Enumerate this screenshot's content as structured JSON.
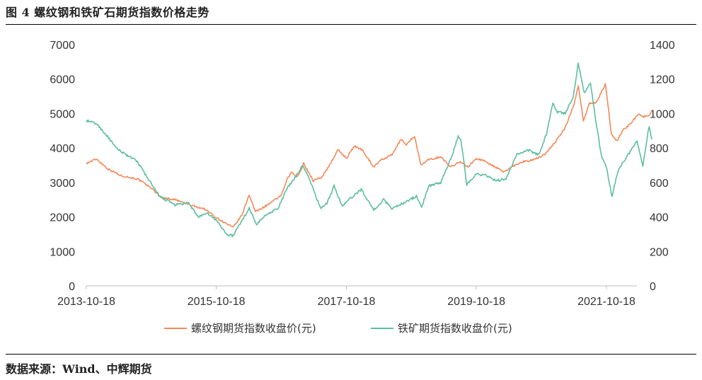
{
  "header": {
    "title": "图 4 螺纹钢和铁矿石期货指数价格走势"
  },
  "footer": {
    "source": "数据来源：Wind、中辉期货"
  },
  "chart_data": {
    "type": "line",
    "title": "",
    "x_ticks": [
      "2013-10-18",
      "2015-10-18",
      "2017-10-18",
      "2019-10-18",
      "2021-10-18"
    ],
    "x_range": [
      "2013-10-18",
      "2022-06-30"
    ],
    "y_left": {
      "range": [
        0,
        7000
      ],
      "ticks": [
        "0",
        "1000",
        "2000",
        "3000",
        "4000",
        "5000",
        "6000",
        "7000"
      ]
    },
    "y_right": {
      "range": [
        0,
        1400
      ],
      "ticks": [
        "0",
        "200",
        "400",
        "600",
        "800",
        "1000",
        "1200",
        "1400"
      ]
    },
    "grid": false,
    "legend_position": "bottom",
    "series": [
      {
        "name": "螺纹钢期货指数收盘价(元)",
        "axis": "left",
        "color": "#f4885a",
        "points": [
          [
            "2013-10-18",
            3560
          ],
          [
            "2013-12-15",
            3680
          ],
          [
            "2014-02-15",
            3400
          ],
          [
            "2014-05-01",
            3200
          ],
          [
            "2014-08-01",
            3100
          ],
          [
            "2014-10-15",
            2850
          ],
          [
            "2014-12-15",
            2560
          ],
          [
            "2015-03-01",
            2500
          ],
          [
            "2015-06-01",
            2330
          ],
          [
            "2015-08-15",
            2230
          ],
          [
            "2015-10-18",
            1980
          ],
          [
            "2015-12-15",
            1800
          ],
          [
            "2016-01-20",
            1690
          ],
          [
            "2016-03-10",
            2050
          ],
          [
            "2016-04-20",
            2650
          ],
          [
            "2016-05-25",
            2150
          ],
          [
            "2016-07-15",
            2300
          ],
          [
            "2016-09-01",
            2450
          ],
          [
            "2016-10-20",
            2650
          ],
          [
            "2016-11-20",
            3100
          ],
          [
            "2016-12-15",
            3300
          ],
          [
            "2017-01-15",
            3150
          ],
          [
            "2017-02-20",
            3550
          ],
          [
            "2017-04-15",
            3050
          ],
          [
            "2017-06-01",
            3150
          ],
          [
            "2017-07-15",
            3500
          ],
          [
            "2017-09-01",
            3950
          ],
          [
            "2017-10-18",
            3700
          ],
          [
            "2017-12-01",
            4050
          ],
          [
            "2018-01-15",
            3950
          ],
          [
            "2018-03-20",
            3450
          ],
          [
            "2018-05-01",
            3650
          ],
          [
            "2018-07-01",
            3800
          ],
          [
            "2018-08-20",
            4250
          ],
          [
            "2018-09-20",
            4100
          ],
          [
            "2018-11-05",
            4350
          ],
          [
            "2018-12-10",
            3500
          ],
          [
            "2019-01-20",
            3650
          ],
          [
            "2019-04-01",
            3750
          ],
          [
            "2019-05-25",
            3450
          ],
          [
            "2019-07-15",
            3600
          ],
          [
            "2019-09-01",
            3450
          ],
          [
            "2019-10-18",
            3700
          ],
          [
            "2019-12-15",
            3600
          ],
          [
            "2020-02-01",
            3450
          ],
          [
            "2020-03-20",
            3300
          ],
          [
            "2020-05-01",
            3450
          ],
          [
            "2020-07-01",
            3600
          ],
          [
            "2020-09-01",
            3650
          ],
          [
            "2020-11-01",
            3800
          ],
          [
            "2021-01-01",
            4150
          ],
          [
            "2021-03-01",
            4600
          ],
          [
            "2021-04-15",
            5200
          ],
          [
            "2021-05-13",
            5800
          ],
          [
            "2021-06-10",
            4800
          ],
          [
            "2021-07-15",
            5300
          ],
          [
            "2021-08-20",
            5300
          ],
          [
            "2021-10-12",
            5850
          ],
          [
            "2021-11-15",
            4400
          ],
          [
            "2021-12-15",
            4200
          ],
          [
            "2022-01-15",
            4500
          ],
          [
            "2022-03-01",
            4700
          ],
          [
            "2022-04-15",
            5000
          ],
          [
            "2022-05-10",
            4900
          ],
          [
            "2022-06-15",
            4950
          ],
          [
            "2022-06-30",
            5100
          ]
        ]
      },
      {
        "name": "铁矿期货指数收盘价(元)",
        "axis": "right",
        "color": "#5cbea0",
        "points": [
          [
            "2013-10-18",
            960
          ],
          [
            "2013-12-15",
            940
          ],
          [
            "2014-02-20",
            860
          ],
          [
            "2014-04-01",
            800
          ],
          [
            "2014-06-01",
            760
          ],
          [
            "2014-08-01",
            720
          ],
          [
            "2014-10-01",
            620
          ],
          [
            "2014-12-01",
            520
          ],
          [
            "2015-03-01",
            470
          ],
          [
            "2015-05-15",
            480
          ],
          [
            "2015-07-10",
            400
          ],
          [
            "2015-09-01",
            420
          ],
          [
            "2015-10-18",
            380
          ],
          [
            "2015-12-15",
            300
          ],
          [
            "2016-01-20",
            290
          ],
          [
            "2016-03-10",
            380
          ],
          [
            "2016-04-20",
            450
          ],
          [
            "2016-06-01",
            360
          ],
          [
            "2016-08-01",
            420
          ],
          [
            "2016-10-01",
            450
          ],
          [
            "2016-11-15",
            560
          ],
          [
            "2016-12-15",
            600
          ],
          [
            "2017-02-15",
            700
          ],
          [
            "2017-04-01",
            600
          ],
          [
            "2017-05-25",
            450
          ],
          [
            "2017-07-01",
            480
          ],
          [
            "2017-08-10",
            580
          ],
          [
            "2017-09-25",
            460
          ],
          [
            "2017-11-01",
            500
          ],
          [
            "2018-01-10",
            560
          ],
          [
            "2018-03-20",
            440
          ],
          [
            "2018-05-15",
            500
          ],
          [
            "2018-07-01",
            450
          ],
          [
            "2018-09-01",
            480
          ],
          [
            "2018-11-15",
            520
          ],
          [
            "2018-12-15",
            460
          ],
          [
            "2019-01-25",
            580
          ],
          [
            "2019-04-01",
            600
          ],
          [
            "2019-06-01",
            750
          ],
          [
            "2019-07-08",
            870
          ],
          [
            "2019-07-25",
            840
          ],
          [
            "2019-08-25",
            590
          ],
          [
            "2019-10-18",
            650
          ],
          [
            "2019-12-15",
            640
          ],
          [
            "2020-02-01",
            610
          ],
          [
            "2020-04-01",
            620
          ],
          [
            "2020-06-01",
            760
          ],
          [
            "2020-08-01",
            790
          ],
          [
            "2020-10-01",
            760
          ],
          [
            "2020-11-15",
            880
          ],
          [
            "2020-12-21",
            1060
          ],
          [
            "2021-01-15",
            1010
          ],
          [
            "2021-03-01",
            1000
          ],
          [
            "2021-04-15",
            1100
          ],
          [
            "2021-05-12",
            1290
          ],
          [
            "2021-06-15",
            1120
          ],
          [
            "2021-07-20",
            1180
          ],
          [
            "2021-08-20",
            950
          ],
          [
            "2021-09-20",
            750
          ],
          [
            "2021-10-15",
            700
          ],
          [
            "2021-11-18",
            520
          ],
          [
            "2021-12-20",
            660
          ],
          [
            "2022-01-20",
            720
          ],
          [
            "2022-03-01",
            780
          ],
          [
            "2022-04-08",
            840
          ],
          [
            "2022-05-10",
            700
          ],
          [
            "2022-06-15",
            930
          ],
          [
            "2022-06-30",
            850
          ]
        ]
      }
    ]
  }
}
